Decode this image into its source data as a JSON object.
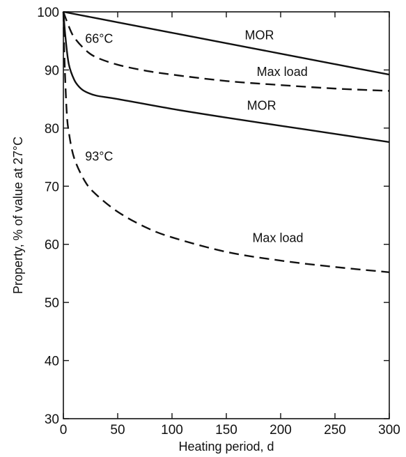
{
  "chart_data": {
    "type": "line",
    "title": "",
    "xlabel": "Heating period, d",
    "ylabel": "Property, % of value at 27°C",
    "xlim": [
      0,
      300
    ],
    "ylim": [
      30,
      100
    ],
    "xticks": [
      0,
      50,
      100,
      150,
      200,
      250,
      300
    ],
    "yticks": [
      30,
      40,
      50,
      60,
      70,
      80,
      90,
      100
    ],
    "grid": false,
    "series": [
      {
        "name": "MOR",
        "style": "solid",
        "x": [
          0,
          50,
          100,
          150,
          200,
          250,
          300
        ],
        "y": [
          100,
          98.2,
          96.4,
          94.6,
          92.8,
          91.0,
          89.2
        ]
      },
      {
        "name": "Max load",
        "style": "dashed",
        "x": [
          0,
          5,
          10,
          20,
          30,
          50,
          75,
          100,
          150,
          200,
          250,
          300
        ],
        "y": [
          100,
          97.5,
          95.6,
          93.5,
          92.2,
          90.9,
          89.9,
          89.2,
          88.1,
          87.4,
          86.8,
          86.4
        ]
      },
      {
        "name": "MOR",
        "style": "solid",
        "x": [
          0,
          2,
          5,
          10,
          15,
          20,
          30,
          50,
          100,
          150,
          200,
          250,
          300
        ],
        "y": [
          100,
          95.5,
          91,
          88.3,
          87,
          86.3,
          85.6,
          85.0,
          83.3,
          81.8,
          80.4,
          79.0,
          77.6
        ]
      },
      {
        "name": "Max load",
        "style": "dashed",
        "x": [
          0,
          1,
          3,
          5,
          10,
          20,
          30,
          50,
          75,
          100,
          150,
          200,
          250,
          300
        ],
        "y": [
          100,
          92,
          83,
          79.3,
          74.8,
          70.8,
          68.6,
          65.6,
          63.0,
          61.2,
          58.7,
          57.2,
          56.1,
          55.2
        ]
      }
    ],
    "annotations": [
      {
        "text": "66°C",
        "x": 20,
        "y": 95.4
      },
      {
        "text": "93°C",
        "x": 20,
        "y": 75.1
      },
      {
        "text": "MOR",
        "x": 167,
        "y": 96.0
      },
      {
        "text": "Max load",
        "x": 178,
        "y": 89.7
      },
      {
        "text": "MOR",
        "x": 169,
        "y": 83.9
      },
      {
        "text": "Max load",
        "x": 174,
        "y": 61.1
      }
    ]
  }
}
